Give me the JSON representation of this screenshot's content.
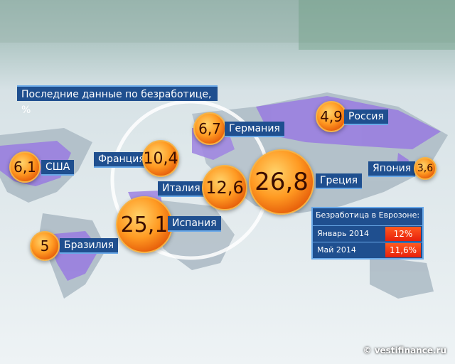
{
  "title": "Последние данные по безработице, %",
  "countries": [
    {
      "name": "США",
      "value": "6,1"
    },
    {
      "name": "Бразилия",
      "value": "5"
    },
    {
      "name": "Франция",
      "value": "10,4"
    },
    {
      "name": "Германия",
      "value": "6,7"
    },
    {
      "name": "Италия",
      "value": "12,6"
    },
    {
      "name": "Испания",
      "value": "25,1"
    },
    {
      "name": "Греция",
      "value": "26,8"
    },
    {
      "name": "Россия",
      "value": "4,9"
    },
    {
      "name": "Япония",
      "value": "3,6"
    }
  ],
  "eurozone": {
    "title": "Безработица в Еврозоне:",
    "rows": [
      {
        "label": "Январь 2014",
        "value": "12%"
      },
      {
        "label": "Май 2014",
        "value": "11,6%"
      }
    ]
  },
  "credit": "© vestifinance.ru",
  "colors": {
    "label_bg": "#1f4f8f",
    "bubble": "#ff8a1a",
    "highlight_land": "#9a7fe0"
  }
}
